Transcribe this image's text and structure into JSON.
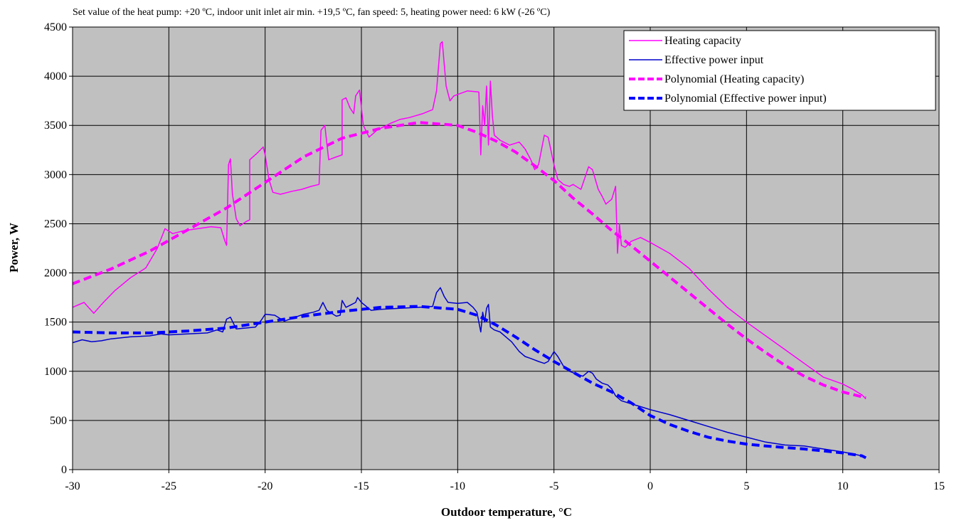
{
  "chart_data": {
    "type": "line",
    "title": "Set value of the heat pump: +20 ºC,  indoor unit inlet air min. +19,5 ºC, fan speed: 5, heating power need: 6 kW (-26 ºC)",
    "xlabel": "Outdoor temperature, °C",
    "ylabel": "Power, W",
    "xlim": [
      -30,
      15
    ],
    "ylim": [
      0,
      4500
    ],
    "x_ticks": [
      -30,
      -25,
      -20,
      -15,
      -10,
      -5,
      0,
      5,
      10,
      15
    ],
    "y_ticks": [
      0,
      500,
      1000,
      1500,
      2000,
      2500,
      3000,
      3500,
      4000,
      4500
    ],
    "grid": true,
    "plot_background": "#c0c0c0",
    "legend_position": "top-right",
    "series": [
      {
        "name": "Heating capacity",
        "color": "#ff00ff",
        "style": "solid",
        "points": [
          [
            -30,
            1650
          ],
          [
            -29.4,
            1700
          ],
          [
            -28.9,
            1590
          ],
          [
            -28.4,
            1700
          ],
          [
            -27.8,
            1820
          ],
          [
            -27,
            1950
          ],
          [
            -26.2,
            2050
          ],
          [
            -25.6,
            2250
          ],
          [
            -25.2,
            2450
          ],
          [
            -24.8,
            2400
          ],
          [
            -24.2,
            2430
          ],
          [
            -23.5,
            2450
          ],
          [
            -22.8,
            2470
          ],
          [
            -22.3,
            2460
          ],
          [
            -22.1,
            2330
          ],
          [
            -22.0,
            2280
          ],
          [
            -21.9,
            3100
          ],
          [
            -21.8,
            3160
          ],
          [
            -21.7,
            2800
          ],
          [
            -21.5,
            2550
          ],
          [
            -21.3,
            2480
          ],
          [
            -21.0,
            2520
          ],
          [
            -20.8,
            2540
          ],
          [
            -20.8,
            3150
          ],
          [
            -20.4,
            3220
          ],
          [
            -20.1,
            3280
          ],
          [
            -20.0,
            3200
          ],
          [
            -19.8,
            2950
          ],
          [
            -19.6,
            2820
          ],
          [
            -19.2,
            2800
          ],
          [
            -18.6,
            2830
          ],
          [
            -18.1,
            2850
          ],
          [
            -17.6,
            2880
          ],
          [
            -17.2,
            2900
          ],
          [
            -17.1,
            3450
          ],
          [
            -16.9,
            3500
          ],
          [
            -16.7,
            3150
          ],
          [
            -16.3,
            3180
          ],
          [
            -16.0,
            3200
          ],
          [
            -16.0,
            3760
          ],
          [
            -15.8,
            3780
          ],
          [
            -15.6,
            3680
          ],
          [
            -15.4,
            3620
          ],
          [
            -15.3,
            3800
          ],
          [
            -15.1,
            3860
          ],
          [
            -14.9,
            3500
          ],
          [
            -14.6,
            3380
          ],
          [
            -14.2,
            3450
          ],
          [
            -13.5,
            3520
          ],
          [
            -13.0,
            3560
          ],
          [
            -12.5,
            3580
          ],
          [
            -11.8,
            3620
          ],
          [
            -11.3,
            3660
          ],
          [
            -11.1,
            3850
          ],
          [
            -10.9,
            4330
          ],
          [
            -10.8,
            4350
          ],
          [
            -10.6,
            3900
          ],
          [
            -10.4,
            3750
          ],
          [
            -10.2,
            3800
          ],
          [
            -9.5,
            3850
          ],
          [
            -8.9,
            3840
          ],
          [
            -8.8,
            3200
          ],
          [
            -8.7,
            3700
          ],
          [
            -8.6,
            3500
          ],
          [
            -8.5,
            3900
          ],
          [
            -8.4,
            3300
          ],
          [
            -8.3,
            3950
          ],
          [
            -8.2,
            3600
          ],
          [
            -8.1,
            3400
          ],
          [
            -7.8,
            3350
          ],
          [
            -7.3,
            3300
          ],
          [
            -6.8,
            3330
          ],
          [
            -6.5,
            3260
          ],
          [
            -6.2,
            3150
          ],
          [
            -6.0,
            3050
          ],
          [
            -5.8,
            3100
          ],
          [
            -5.5,
            3400
          ],
          [
            -5.3,
            3380
          ],
          [
            -5.0,
            3100
          ],
          [
            -4.8,
            2950
          ],
          [
            -4.5,
            2900
          ],
          [
            -4.2,
            2880
          ],
          [
            -4.0,
            2900
          ],
          [
            -3.6,
            2850
          ],
          [
            -3.2,
            3080
          ],
          [
            -3.0,
            3050
          ],
          [
            -2.7,
            2850
          ],
          [
            -2.5,
            2780
          ],
          [
            -2.3,
            2700
          ],
          [
            -2.0,
            2750
          ],
          [
            -1.8,
            2880
          ],
          [
            -1.7,
            2200
          ],
          [
            -1.6,
            2500
          ],
          [
            -1.5,
            2280
          ],
          [
            -1.3,
            2260
          ],
          [
            -1.0,
            2320
          ],
          [
            -0.5,
            2360
          ],
          [
            0,
            2310
          ],
          [
            1,
            2200
          ],
          [
            2,
            2050
          ],
          [
            3,
            1840
          ],
          [
            4,
            1650
          ],
          [
            5,
            1500
          ],
          [
            6,
            1360
          ],
          [
            7,
            1220
          ],
          [
            8,
            1080
          ],
          [
            9,
            940
          ],
          [
            10,
            870
          ],
          [
            10.5,
            820
          ],
          [
            11.0,
            760
          ],
          [
            11.2,
            720
          ]
        ]
      },
      {
        "name": "Effective power input",
        "color": "#0000cc",
        "style": "solid",
        "points": [
          [
            -30,
            1290
          ],
          [
            -29.5,
            1320
          ],
          [
            -29.0,
            1300
          ],
          [
            -28.5,
            1310
          ],
          [
            -28.0,
            1330
          ],
          [
            -27.0,
            1350
          ],
          [
            -26.0,
            1360
          ],
          [
            -25.4,
            1380
          ],
          [
            -25.0,
            1370
          ],
          [
            -24.0,
            1380
          ],
          [
            -23.0,
            1390
          ],
          [
            -22.5,
            1420
          ],
          [
            -22.2,
            1400
          ],
          [
            -22.0,
            1530
          ],
          [
            -21.8,
            1550
          ],
          [
            -21.5,
            1430
          ],
          [
            -21.0,
            1440
          ],
          [
            -20.5,
            1450
          ],
          [
            -20.2,
            1520
          ],
          [
            -20.0,
            1580
          ],
          [
            -19.5,
            1570
          ],
          [
            -19.0,
            1510
          ],
          [
            -18.0,
            1580
          ],
          [
            -17.5,
            1600
          ],
          [
            -17.2,
            1620
          ],
          [
            -17.0,
            1700
          ],
          [
            -16.8,
            1620
          ],
          [
            -16.3,
            1560
          ],
          [
            -16.1,
            1570
          ],
          [
            -16.0,
            1720
          ],
          [
            -15.8,
            1650
          ],
          [
            -15.5,
            1680
          ],
          [
            -15.3,
            1700
          ],
          [
            -15.2,
            1750
          ],
          [
            -15.0,
            1700
          ],
          [
            -14.5,
            1620
          ],
          [
            -14.0,
            1630
          ],
          [
            -13.0,
            1640
          ],
          [
            -12.0,
            1650
          ],
          [
            -11.3,
            1660
          ],
          [
            -11.1,
            1800
          ],
          [
            -10.9,
            1850
          ],
          [
            -10.7,
            1760
          ],
          [
            -10.5,
            1700
          ],
          [
            -10.0,
            1690
          ],
          [
            -9.5,
            1700
          ],
          [
            -9.2,
            1650
          ],
          [
            -9.0,
            1600
          ],
          [
            -8.8,
            1400
          ],
          [
            -8.7,
            1600
          ],
          [
            -8.6,
            1500
          ],
          [
            -8.5,
            1640
          ],
          [
            -8.4,
            1680
          ],
          [
            -8.3,
            1450
          ],
          [
            -8.1,
            1420
          ],
          [
            -7.8,
            1400
          ],
          [
            -7.5,
            1350
          ],
          [
            -7.2,
            1300
          ],
          [
            -6.8,
            1200
          ],
          [
            -6.5,
            1150
          ],
          [
            -6.2,
            1130
          ],
          [
            -5.8,
            1100
          ],
          [
            -5.5,
            1080
          ],
          [
            -5.3,
            1100
          ],
          [
            -5.0,
            1200
          ],
          [
            -4.8,
            1150
          ],
          [
            -4.5,
            1050
          ],
          [
            -4.2,
            1000
          ],
          [
            -3.8,
            970
          ],
          [
            -3.5,
            950
          ],
          [
            -3.2,
            1000
          ],
          [
            -3.0,
            980
          ],
          [
            -2.8,
            920
          ],
          [
            -2.5,
            880
          ],
          [
            -2.2,
            860
          ],
          [
            -2.0,
            820
          ],
          [
            -1.8,
            750
          ],
          [
            -1.5,
            700
          ],
          [
            -1.0,
            670
          ],
          [
            -0.5,
            640
          ],
          [
            0,
            610
          ],
          [
            1,
            560
          ],
          [
            2,
            500
          ],
          [
            3,
            440
          ],
          [
            4,
            380
          ],
          [
            5,
            330
          ],
          [
            6,
            280
          ],
          [
            7,
            250
          ],
          [
            8,
            240
          ],
          [
            9,
            210
          ],
          [
            10,
            180
          ],
          [
            10.5,
            160
          ],
          [
            11.0,
            140
          ],
          [
            11.2,
            120
          ]
        ]
      },
      {
        "name": "Polynomial (Heating capacity)",
        "color": "#ff00ff",
        "style": "dashed",
        "points": [
          [
            -30,
            1890
          ],
          [
            -28,
            2040
          ],
          [
            -26,
            2220
          ],
          [
            -24,
            2440
          ],
          [
            -22,
            2660
          ],
          [
            -20,
            2920
          ],
          [
            -18,
            3180
          ],
          [
            -16,
            3370
          ],
          [
            -14,
            3470
          ],
          [
            -12,
            3530
          ],
          [
            -10,
            3500
          ],
          [
            -9,
            3430
          ],
          [
            -8,
            3340
          ],
          [
            -7,
            3230
          ],
          [
            -6,
            3090
          ],
          [
            -5,
            2940
          ],
          [
            -4,
            2760
          ],
          [
            -3,
            2600
          ],
          [
            -2,
            2430
          ],
          [
            -1,
            2280
          ],
          [
            0,
            2120
          ],
          [
            1,
            1960
          ],
          [
            2,
            1800
          ],
          [
            3,
            1640
          ],
          [
            4,
            1480
          ],
          [
            5,
            1330
          ],
          [
            6,
            1190
          ],
          [
            7,
            1060
          ],
          [
            8,
            950
          ],
          [
            9,
            860
          ],
          [
            10,
            790
          ],
          [
            11,
            740
          ],
          [
            11.2,
            730
          ]
        ]
      },
      {
        "name": "Polynomial (Effective power input)",
        "color": "#0000ff",
        "style": "dashed",
        "points": [
          [
            -30,
            1400
          ],
          [
            -28,
            1390
          ],
          [
            -26,
            1390
          ],
          [
            -24,
            1410
          ],
          [
            -22,
            1440
          ],
          [
            -20,
            1500
          ],
          [
            -18,
            1560
          ],
          [
            -16,
            1610
          ],
          [
            -14,
            1650
          ],
          [
            -12,
            1660
          ],
          [
            -10,
            1630
          ],
          [
            -9,
            1570
          ],
          [
            -8,
            1470
          ],
          [
            -7,
            1350
          ],
          [
            -6,
            1220
          ],
          [
            -5,
            1100
          ],
          [
            -4,
            990
          ],
          [
            -3,
            880
          ],
          [
            -2,
            790
          ],
          [
            -1,
            680
          ],
          [
            0,
            550
          ],
          [
            1,
            460
          ],
          [
            2,
            390
          ],
          [
            3,
            330
          ],
          [
            4,
            290
          ],
          [
            5,
            260
          ],
          [
            6,
            240
          ],
          [
            7,
            225
          ],
          [
            8,
            210
          ],
          [
            9,
            190
          ],
          [
            10,
            170
          ],
          [
            11,
            140
          ],
          [
            11.2,
            120
          ]
        ]
      }
    ]
  }
}
